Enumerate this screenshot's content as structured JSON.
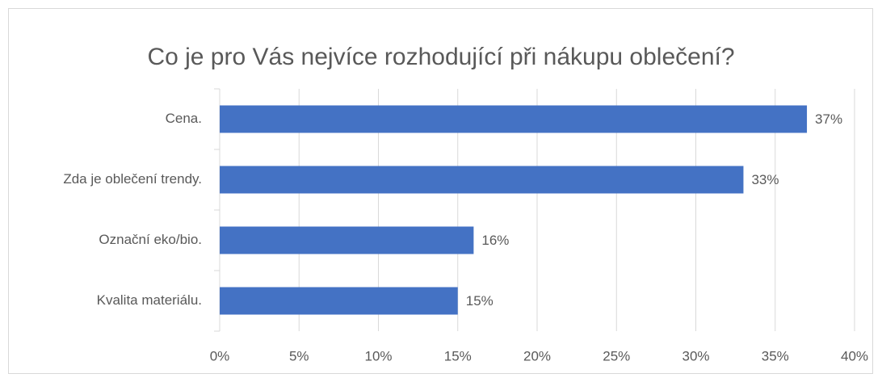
{
  "chart_data": {
    "type": "bar",
    "orientation": "horizontal",
    "title": "Co je pro Vás nejvíce rozhodující při nákupu oblečení?",
    "categories": [
      "Cena.",
      "Zda je oblečení trendy.",
      "Označní eko/bio.",
      "Kvalita materiálu."
    ],
    "values": [
      37,
      33,
      16,
      15
    ],
    "value_labels": [
      "37%",
      "33%",
      "16%",
      "15%"
    ],
    "color": "#4472c4",
    "xlim": [
      0,
      40
    ],
    "xticks": [
      {
        "value": 0,
        "label": "0%"
      },
      {
        "value": 5,
        "label": "5%"
      },
      {
        "value": 10,
        "label": "10%"
      },
      {
        "value": 15,
        "label": "15%"
      },
      {
        "value": 20,
        "label": "20%"
      },
      {
        "value": 25,
        "label": "25%"
      },
      {
        "value": 30,
        "label": "30%"
      },
      {
        "value": 35,
        "label": "35%"
      },
      {
        "value": 40,
        "label": "40%"
      }
    ],
    "grid": true
  }
}
